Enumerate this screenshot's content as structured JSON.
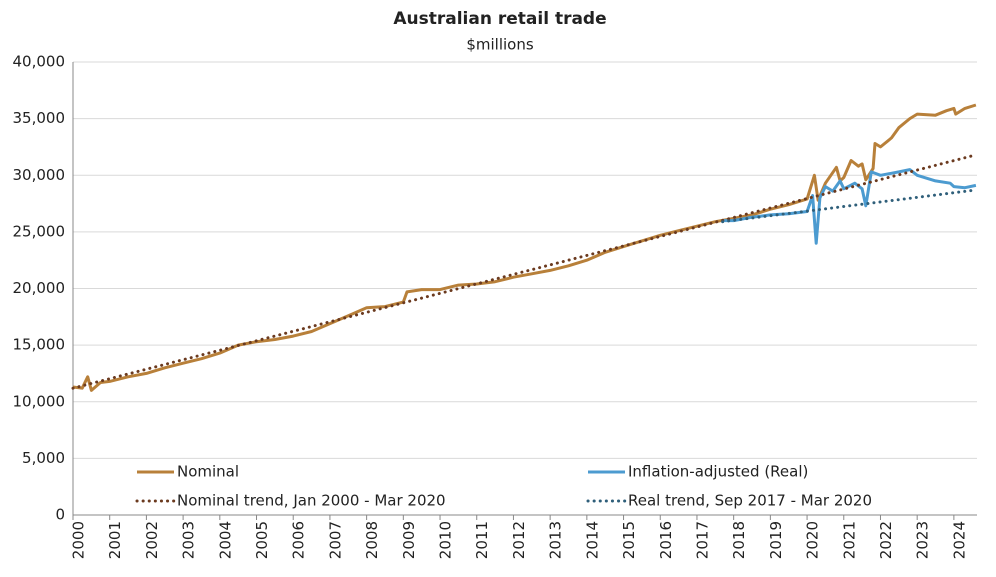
{
  "chart_data": {
    "type": "line",
    "title": "Australian retail trade",
    "subtitle": "$millions",
    "xlim": [
      2000,
      2024.63
    ],
    "xticks": [
      2000,
      2001,
      2002,
      2003,
      2004,
      2005,
      2006,
      2007,
      2008,
      2009,
      2010,
      2011,
      2012,
      2013,
      2014,
      2015,
      2016,
      2017,
      2018,
      2019,
      2020,
      2021,
      2022,
      2023,
      2024
    ],
    "ylim": [
      0,
      40000
    ],
    "yticks": [
      {
        "value": 0,
        "label": "0"
      },
      {
        "value": 5000,
        "label": "5,000"
      },
      {
        "value": 10000,
        "label": "10,000"
      },
      {
        "value": 15000,
        "label": "15,000"
      },
      {
        "value": 20000,
        "label": "20,000"
      },
      {
        "value": 25000,
        "label": "25,000"
      },
      {
        "value": 30000,
        "label": "30,000"
      },
      {
        "value": 35000,
        "label": "35,000"
      },
      {
        "value": 40000,
        "label": "40,000"
      }
    ],
    "grid": true,
    "series": [
      {
        "name": "Nominal",
        "color": "#b8803a",
        "style": "solid",
        "x": [
          2000.0,
          2000.25,
          2000.4,
          2000.5,
          2000.75,
          2001.0,
          2001.5,
          2002.0,
          2002.5,
          2003.0,
          2003.5,
          2004.0,
          2004.5,
          2005.0,
          2005.5,
          2006.0,
          2006.5,
          2007.0,
          2007.5,
          2008.0,
          2008.5,
          2009.0,
          2009.1,
          2009.5,
          2010.0,
          2010.5,
          2011.0,
          2011.5,
          2012.0,
          2012.5,
          2013.0,
          2013.5,
          2014.0,
          2014.5,
          2015.0,
          2015.5,
          2016.0,
          2016.5,
          2017.0,
          2017.5,
          2018.0,
          2018.5,
          2019.0,
          2019.5,
          2020.0,
          2020.2,
          2020.3,
          2020.5,
          2020.8,
          2020.9,
          2021.0,
          2021.2,
          2021.4,
          2021.5,
          2021.6,
          2021.8,
          2021.85,
          2022.0,
          2022.3,
          2022.5,
          2022.8,
          2023.0,
          2023.5,
          2023.8,
          2024.0,
          2024.05,
          2024.3,
          2024.6
        ],
        "values": [
          11300,
          11200,
          12200,
          11000,
          11700,
          11800,
          12200,
          12500,
          13000,
          13400,
          13800,
          14300,
          15000,
          15300,
          15500,
          15800,
          16200,
          16900,
          17600,
          18300,
          18400,
          18800,
          19700,
          19900,
          19900,
          20300,
          20400,
          20600,
          21000,
          21300,
          21600,
          22000,
          22500,
          23200,
          23700,
          24200,
          24700,
          25100,
          25500,
          25900,
          26200,
          26500,
          27000,
          27400,
          27900,
          30000,
          27800,
          29300,
          30700,
          29500,
          29800,
          31300,
          30800,
          31000,
          29600,
          30600,
          32800,
          32500,
          33300,
          34200,
          35000,
          35400,
          35300,
          35700,
          35900,
          35400,
          35900,
          36200
        ]
      },
      {
        "name": "Inflation-adjusted (Real)",
        "color": "#4c9bd0",
        "style": "solid",
        "x": [
          2017.7,
          2018.0,
          2018.5,
          2019.0,
          2019.5,
          2020.0,
          2020.15,
          2020.25,
          2020.35,
          2020.5,
          2020.7,
          2020.9,
          2021.0,
          2021.3,
          2021.5,
          2021.6,
          2021.75,
          2022.0,
          2022.5,
          2022.8,
          2023.0,
          2023.5,
          2023.9,
          2024.0,
          2024.3,
          2024.6
        ],
        "values": [
          26000,
          26000,
          26300,
          26500,
          26600,
          26800,
          28200,
          24000,
          28000,
          29000,
          28600,
          29500,
          28800,
          29300,
          28800,
          27300,
          30300,
          30000,
          30300,
          30500,
          30000,
          29500,
          29300,
          29000,
          28900,
          29100
        ]
      },
      {
        "name": "Nominal trend, Jan 2000 - Mar 2020",
        "color": "#6b3a1f",
        "style": "dotted",
        "x": [
          2000.0,
          2024.6
        ],
        "values": [
          11200,
          31800
        ]
      },
      {
        "name": "Real trend, Sep 2017 - Mar 2020",
        "color": "#2f5f7a",
        "style": "dotted",
        "x": [
          2017.7,
          2024.6
        ],
        "values": [
          25900,
          28700
        ]
      }
    ]
  }
}
